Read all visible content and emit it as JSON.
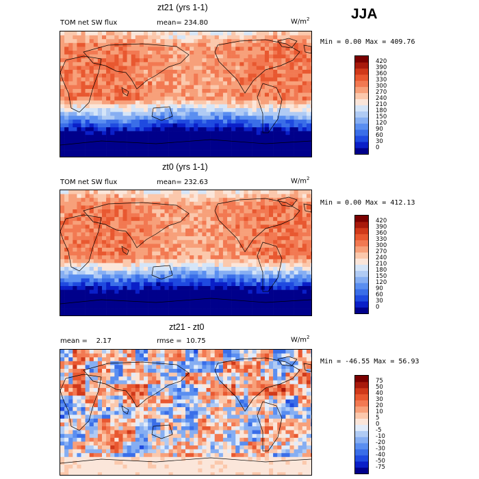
{
  "season": "JJA",
  "units_base": "W/m",
  "units_exp": "2",
  "panels": [
    {
      "title": "zt21 (yrs 1-1)",
      "left_label": "TOM net SW flux",
      "stat1_label": "mean=",
      "stat1_value": "234.80",
      "stat2_label": "",
      "stat2_value": "",
      "minmax": "Min =    0.00 Max = 409.76"
    },
    {
      "title": "zt0 (yrs 1-1)",
      "left_label": "TOM net SW flux",
      "stat1_label": "mean=",
      "stat1_value": "232.63",
      "stat2_label": "",
      "stat2_value": "",
      "minmax": "Min =    0.00 Max = 412.13"
    },
    {
      "title": "zt21 - zt0",
      "left_label": "",
      "stat1_label": "mean =",
      "stat1_value": "2.17",
      "stat2_label": "rmse =",
      "stat2_value": "10.75",
      "minmax": "Min = -46.55  Max =  56.93"
    }
  ],
  "chart_data": [
    {
      "type": "heatmap",
      "title": "zt21 (yrs 1-1)",
      "variable": "TOM net SW flux",
      "units": "W/m2",
      "mean": 234.8,
      "min": 0.0,
      "max": 409.76,
      "levels": [
        0,
        30,
        60,
        90,
        120,
        150,
        180,
        210,
        240,
        270,
        300,
        330,
        360,
        390,
        420
      ],
      "colors": [
        "#00008b",
        "#0a1fc8",
        "#1f4ae0",
        "#3a6ee8",
        "#5a8ef0",
        "#86aef2",
        "#b0cbf4",
        "#d5e5f8",
        "#fbe6da",
        "#fbc8ac",
        "#f7a07a",
        "#f27952",
        "#e85830",
        "#d0391a",
        "#a81a0c",
        "#7a0000"
      ]
    },
    {
      "type": "heatmap",
      "title": "zt0 (yrs 1-1)",
      "variable": "TOM net SW flux",
      "units": "W/m2",
      "mean": 232.63,
      "min": 0.0,
      "max": 412.13,
      "levels": [
        0,
        30,
        60,
        90,
        120,
        150,
        180,
        210,
        240,
        270,
        300,
        330,
        360,
        390,
        420
      ],
      "colors": [
        "#00008b",
        "#0a1fc8",
        "#1f4ae0",
        "#3a6ee8",
        "#5a8ef0",
        "#86aef2",
        "#b0cbf4",
        "#d5e5f8",
        "#fbe6da",
        "#fbc8ac",
        "#f7a07a",
        "#f27952",
        "#e85830",
        "#d0391a",
        "#a81a0c",
        "#7a0000"
      ]
    },
    {
      "type": "heatmap",
      "title": "zt21 - zt0",
      "units": "W/m2",
      "mean": 2.17,
      "rmse": 10.75,
      "min": -46.55,
      "max": 56.93,
      "levels": [
        -75,
        -50,
        -40,
        -30,
        -20,
        -10,
        -5,
        0,
        5,
        10,
        20,
        30,
        40,
        50,
        75
      ],
      "colors": [
        "#00008b",
        "#0a1fc8",
        "#1f4ae0",
        "#3a6ee8",
        "#5a8ef0",
        "#86aef2",
        "#b0cbf4",
        "#e2ecfa",
        "#fbe6da",
        "#fbc8ac",
        "#f7a07a",
        "#f27952",
        "#e85830",
        "#d0391a",
        "#a81a0c",
        "#7a0000"
      ]
    }
  ]
}
